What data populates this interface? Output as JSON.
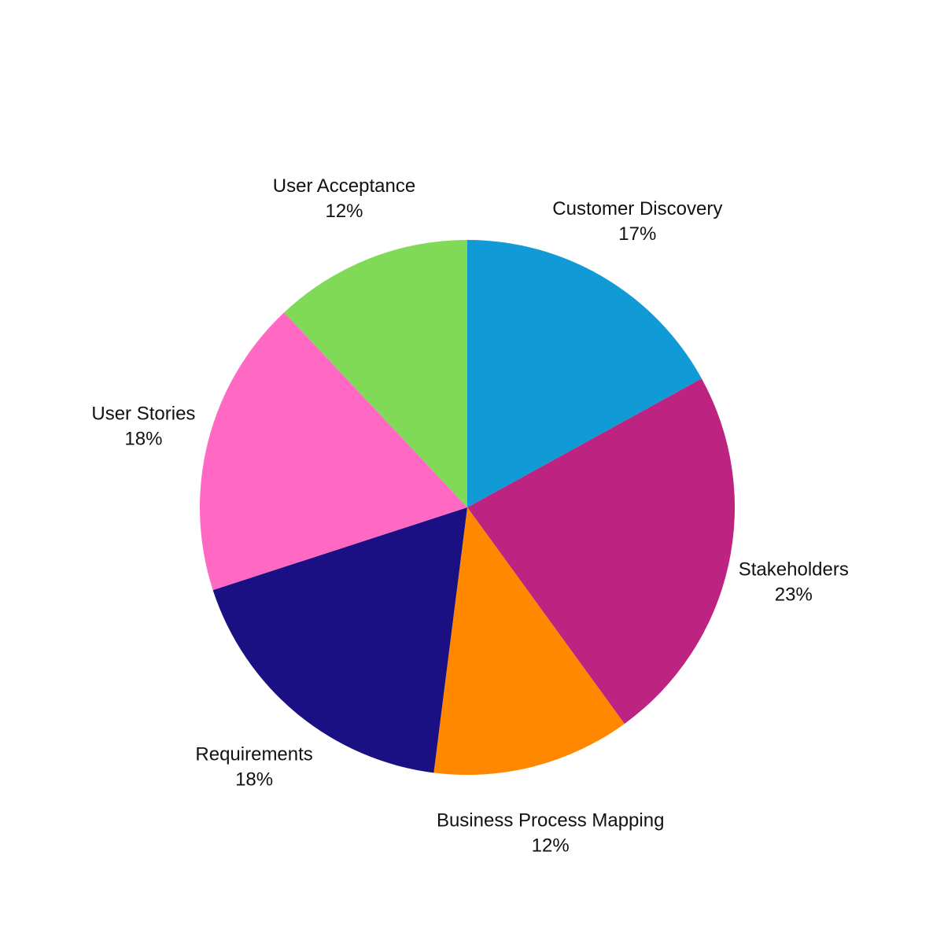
{
  "chart_data": {
    "type": "pie",
    "title": "",
    "slices": [
      {
        "name": "Customer Discovery",
        "value": 17,
        "label": "17%",
        "color": "#119bd6"
      },
      {
        "name": "Stakeholders",
        "value": 23,
        "label": "23%",
        "color": "#bd2481"
      },
      {
        "name": "Business Process Mapping",
        "value": 12,
        "label": "12%",
        "color": "#ff8800"
      },
      {
        "name": "Requirements",
        "value": 18,
        "label": "18%",
        "color": "#1a1083"
      },
      {
        "name": "User Stories",
        "value": 18,
        "label": "18%",
        "color": "#ff69c4"
      },
      {
        "name": "User Acceptance",
        "value": 12,
        "label": "12%",
        "color": "#80d957"
      }
    ],
    "start_angle": "12 o'clock",
    "direction": "clockwise",
    "legend": "none",
    "labels": "outside"
  }
}
